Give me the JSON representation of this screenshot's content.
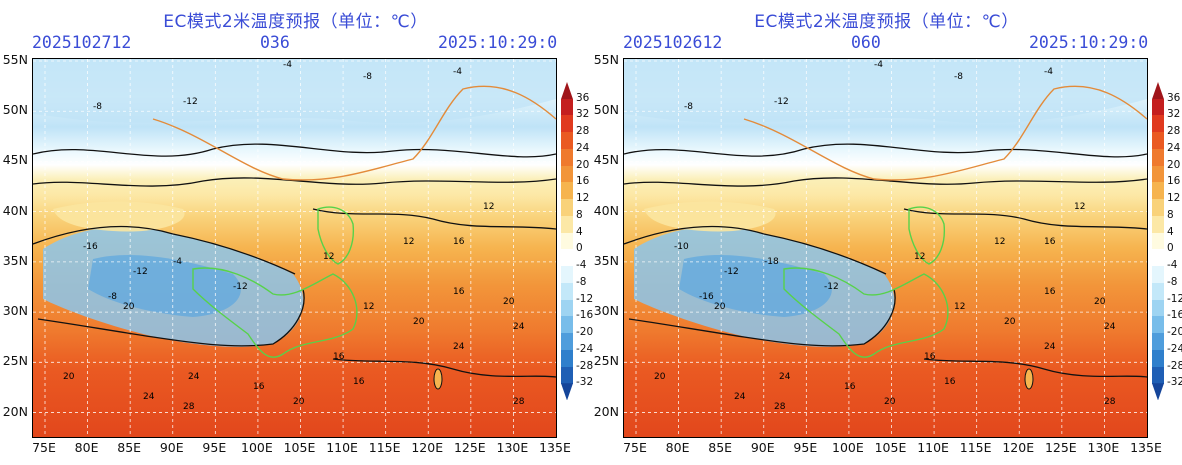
{
  "panels": [
    {
      "id": "left",
      "title": "EC模式2米温度预报（单位：℃）",
      "init_time": "2025102712",
      "forecast_hour": "036",
      "valid_time": "2025:10:29:0"
    },
    {
      "id": "right",
      "title": "EC模式2米温度预报（单位：℃）",
      "init_time": "2025102612",
      "forecast_hour": "060",
      "valid_time": "2025:10:29:0"
    }
  ],
  "axes": {
    "latitude_labels": [
      "55N",
      "50N",
      "45N",
      "40N",
      "35N",
      "30N",
      "25N",
      "20N"
    ],
    "longitude_labels": [
      "75E",
      "80E",
      "85E",
      "90E",
      "95E",
      "100E",
      "105E",
      "110E",
      "115E",
      "120E",
      "125E",
      "130E",
      "135E"
    ]
  },
  "colorbar": {
    "labels": [
      "36",
      "32",
      "28",
      "24",
      "20",
      "16",
      "12",
      "8",
      "4",
      "0",
      "-4",
      "-8",
      "-12",
      "-16",
      "-20",
      "-24",
      "-28",
      "-32"
    ],
    "colors": [
      "#a0151a",
      "#c41f1f",
      "#e03a1f",
      "#ea5a22",
      "#ef7a2e",
      "#f2953a",
      "#f6b44f",
      "#f9d27a",
      "#fce8a6",
      "#fffbe0",
      "#ffffff",
      "#e4f6fd",
      "#c3e8f9",
      "#9ed4f2",
      "#78bdea",
      "#4f9ddc",
      "#2f7fcc",
      "#1f5fb5",
      "#15459a"
    ]
  },
  "contour_labels": {
    "left": [
      "-4",
      "-8",
      "-12",
      "-8",
      "-4",
      "-16",
      "-12",
      "-8",
      "-4",
      "-12",
      "12",
      "12",
      "12",
      "16",
      "12",
      "16",
      "16",
      "20",
      "16",
      "20",
      "24",
      "24",
      "20",
      "24",
      "28",
      "16",
      "20",
      "28",
      "24",
      "20"
    ],
    "right": [
      "-4",
      "-8",
      "-12",
      "-8",
      "-4",
      "-10",
      "-12",
      "-16",
      "-18",
      "-12",
      "12",
      "12",
      "12",
      "16",
      "12",
      "16",
      "16",
      "20",
      "16",
      "20",
      "24",
      "24",
      "20",
      "24",
      "28",
      "16",
      "20",
      "28",
      "24",
      "20"
    ]
  }
}
